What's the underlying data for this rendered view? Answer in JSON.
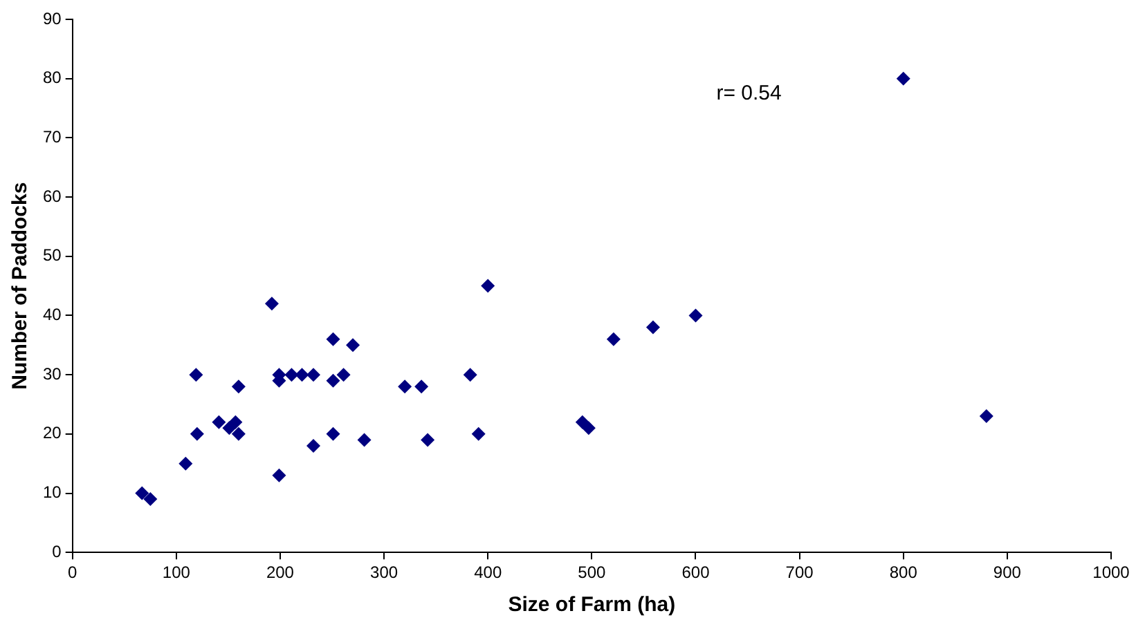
{
  "chart_data": {
    "type": "scatter",
    "xlabel": "Size of Farm (ha)",
    "ylabel": "Number of Paddocks",
    "x": [
      67,
      75,
      109,
      119,
      120,
      141,
      151,
      157,
      160,
      160,
      192,
      199,
      199,
      199,
      211,
      221,
      232,
      232,
      251,
      251,
      251,
      261,
      270,
      281,
      320,
      336,
      342,
      383,
      391,
      400,
      491,
      497,
      521,
      559,
      600,
      800,
      880
    ],
    "values": [
      10,
      9,
      15,
      30,
      20,
      22,
      21,
      22,
      20,
      28,
      42,
      30,
      29,
      13,
      30,
      30,
      30,
      18,
      36,
      29,
      20,
      30,
      35,
      19,
      28,
      28,
      19,
      30,
      20,
      45,
      22,
      21,
      36,
      38,
      40,
      80,
      23
    ],
    "color": "#000080",
    "marker": "diamond",
    "grid": false,
    "legend": false,
    "xlim": [
      0,
      1000
    ],
    "xticks": [
      0,
      100,
      200,
      300,
      400,
      500,
      600,
      700,
      800,
      900,
      1000
    ],
    "ylim": [
      0,
      90
    ],
    "yticks": [
      0,
      10,
      20,
      30,
      40,
      50,
      60,
      70,
      80,
      90
    ],
    "annotations": [
      "r= 0.54"
    ]
  }
}
